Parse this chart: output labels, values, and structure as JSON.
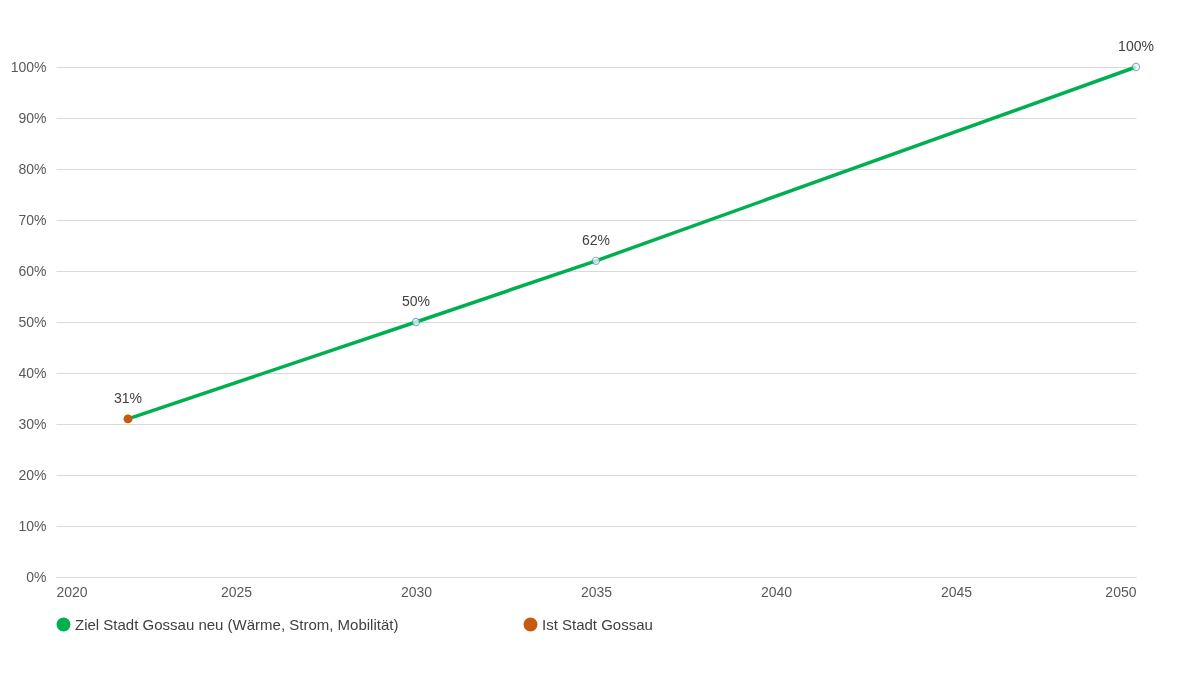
{
  "chart_data": {
    "type": "line",
    "xlim": [
      2020,
      2050
    ],
    "xticks": [
      2020,
      2025,
      2030,
      2035,
      2040,
      2045,
      2050
    ],
    "ylim": [
      0,
      100
    ],
    "yticks": [
      {
        "value": 0,
        "label": "0%"
      },
      {
        "value": 10,
        "label": "10%"
      },
      {
        "value": 20,
        "label": "20%"
      },
      {
        "value": 30,
        "label": "30%"
      },
      {
        "value": 40,
        "label": "40%"
      },
      {
        "value": 50,
        "label": "50%"
      },
      {
        "value": 60,
        "label": "60%"
      },
      {
        "value": 70,
        "label": "70%"
      },
      {
        "value": 80,
        "label": "80%"
      },
      {
        "value": 90,
        "label": "90%"
      },
      {
        "value": 100,
        "label": "100%"
      }
    ],
    "grid": "y",
    "legend": "bottom",
    "marker": "circle",
    "series": [
      {
        "name": "Ziel Stadt Gossau neu (Wärme, Strom, Mobilität)",
        "color": "#00b050",
        "x": [
          2022,
          2030,
          2035,
          2050
        ],
        "values": [
          31,
          50,
          62,
          100
        ],
        "value_labels": [
          null,
          "50%",
          "62%",
          "100%"
        ]
      },
      {
        "name": "Ist Stadt Gossau",
        "type": "scatter",
        "color": "#c55a11",
        "x": [
          2022
        ],
        "values": [
          31
        ],
        "value_labels": [
          "31%"
        ]
      }
    ]
  }
}
